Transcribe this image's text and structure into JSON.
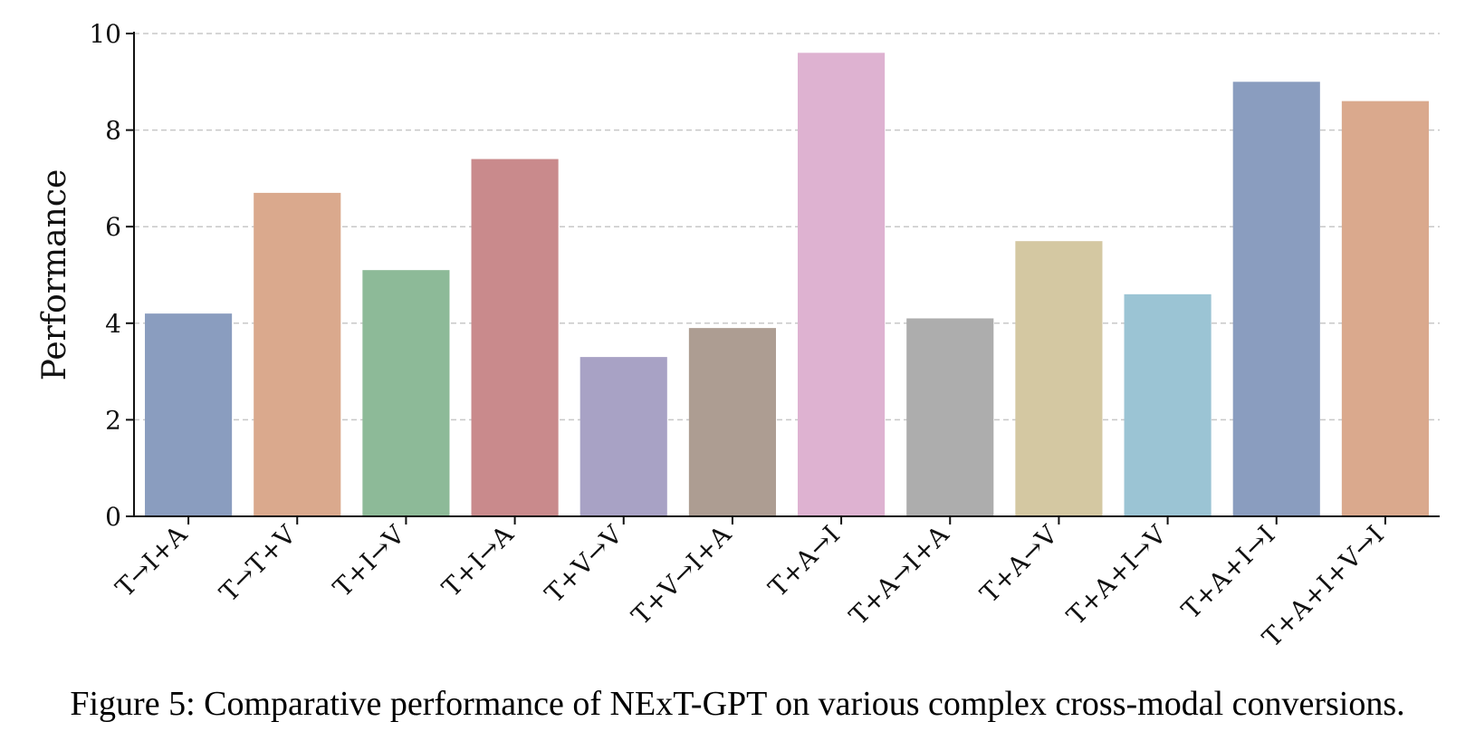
{
  "chart_data": {
    "type": "bar",
    "title": "",
    "xlabel": "",
    "ylabel": "Performance",
    "ylim": [
      0,
      10
    ],
    "yticks": [
      0,
      2,
      4,
      6,
      8,
      10
    ],
    "grid": "y-dashed",
    "categories": [
      "T→I+A",
      "T→T+V",
      "T+I→V",
      "T+I→A",
      "T+V→V",
      "T+V→I+A",
      "T+A→I",
      "T+A→I+A",
      "T+A→V",
      "T+A+I→V",
      "T+A+I→I",
      "T+A+I+V→I"
    ],
    "values": [
      4.2,
      6.7,
      5.1,
      7.4,
      3.3,
      3.9,
      9.6,
      4.1,
      5.7,
      4.6,
      9.0,
      8.6
    ],
    "colors": [
      "#8A9DBF",
      "#DAA98D",
      "#8DBA98",
      "#C98A8C",
      "#A8A2C5",
      "#AD9D92",
      "#DEB2D1",
      "#ADADAD",
      "#D4C8A2",
      "#9BC4D4",
      "#8A9DBF",
      "#DAA98D"
    ]
  },
  "caption": "Figure 5: Comparative performance of NExT-GPT on various complex cross-modal conversions."
}
